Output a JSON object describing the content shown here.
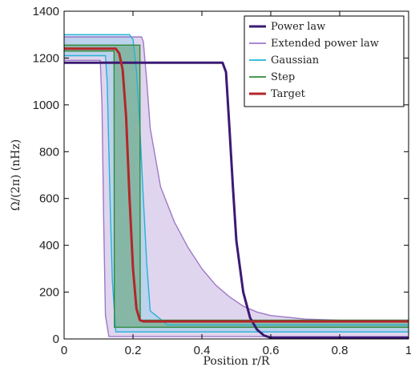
{
  "chart_data": {
    "type": "line",
    "xlabel": "Position r/R",
    "ylabel": "Ω/(2π) (nHz)",
    "xlim": [
      0,
      1
    ],
    "ylim": [
      0,
      1400
    ],
    "xticks": [
      "0",
      "0.2",
      "0.4",
      "0.6",
      "0.8",
      "1"
    ],
    "yticks": [
      "0",
      "200",
      "400",
      "600",
      "800",
      "1000",
      "1200",
      "1400"
    ],
    "grid": false,
    "legend_position": "top-right",
    "series": [
      {
        "name": "Power law",
        "color": "#3b1a73",
        "x": [
          0,
          0.46,
          0.47,
          0.48,
          0.49,
          0.5,
          0.52,
          0.54,
          0.56,
          0.58,
          0.6,
          1.0
        ],
        "y": [
          1180,
          1180,
          1140,
          900,
          650,
          420,
          200,
          90,
          40,
          15,
          5,
          5
        ]
      },
      {
        "name": "Extended power law",
        "color": "#9d78c8",
        "fill": "#c7b3e0",
        "upper_x": [
          0,
          0.225,
          0.23,
          0.24,
          0.25,
          0.28,
          0.32,
          0.36,
          0.4,
          0.44,
          0.48,
          0.52,
          0.56,
          0.6,
          0.7,
          0.8,
          1.0
        ],
        "upper_y": [
          1290,
          1290,
          1270,
          1100,
          900,
          650,
          500,
          390,
          300,
          230,
          180,
          140,
          115,
          100,
          85,
          80,
          80
        ],
        "lower_x": [
          0,
          0.105,
          0.11,
          0.115,
          0.12,
          0.13,
          1.0
        ],
        "lower_y": [
          1190,
          1190,
          1000,
          500,
          100,
          10,
          10
        ]
      },
      {
        "name": "Gaussian",
        "color": "#25b2d6",
        "fill": "#9fd0ec",
        "upper_x": [
          0,
          0.19,
          0.2,
          0.21,
          0.22,
          0.23,
          0.24,
          0.25,
          0.3,
          1.0
        ],
        "upper_y": [
          1300,
          1300,
          1280,
          1150,
          900,
          600,
          320,
          120,
          60,
          60
        ],
        "lower_x": [
          0,
          0.12,
          0.125,
          0.13,
          0.135,
          0.14,
          0.15,
          1.0
        ],
        "lower_y": [
          1210,
          1210,
          1100,
          800,
          500,
          250,
          30,
          30
        ]
      },
      {
        "name": "Step",
        "color": "#2e8b3c",
        "fill": "#5aa06b",
        "upper_x": [
          0,
          0.215,
          0.22,
          0.221,
          1.0
        ],
        "upper_y": [
          1255,
          1255,
          1255,
          80,
          80
        ],
        "lower_x": [
          0,
          0.145,
          0.146,
          1.0
        ],
        "lower_y": [
          1230,
          1230,
          50,
          50
        ]
      },
      {
        "name": "Target",
        "color": "#b3262b",
        "x": [
          0,
          0.15,
          0.16,
          0.17,
          0.18,
          0.19,
          0.2,
          0.21,
          0.22,
          0.23,
          1.0
        ],
        "y": [
          1240,
          1240,
          1220,
          1150,
          950,
          600,
          300,
          130,
          80,
          75,
          75
        ]
      }
    ]
  }
}
